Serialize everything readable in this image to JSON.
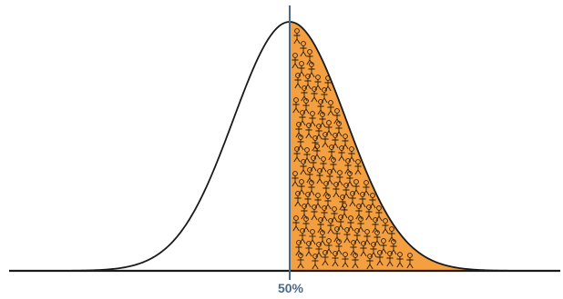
{
  "diagram": {
    "marker_label": "50%",
    "colors": {
      "shaded_fill": "#f4a040",
      "curve_stroke": "#1a1a1a",
      "baseline": "#1a1a1a",
      "marker_line": "#4a6a8c",
      "figure_stroke": "#2a1a0a"
    },
    "icons": {
      "figure": "stick-figure-person-icon"
    }
  }
}
